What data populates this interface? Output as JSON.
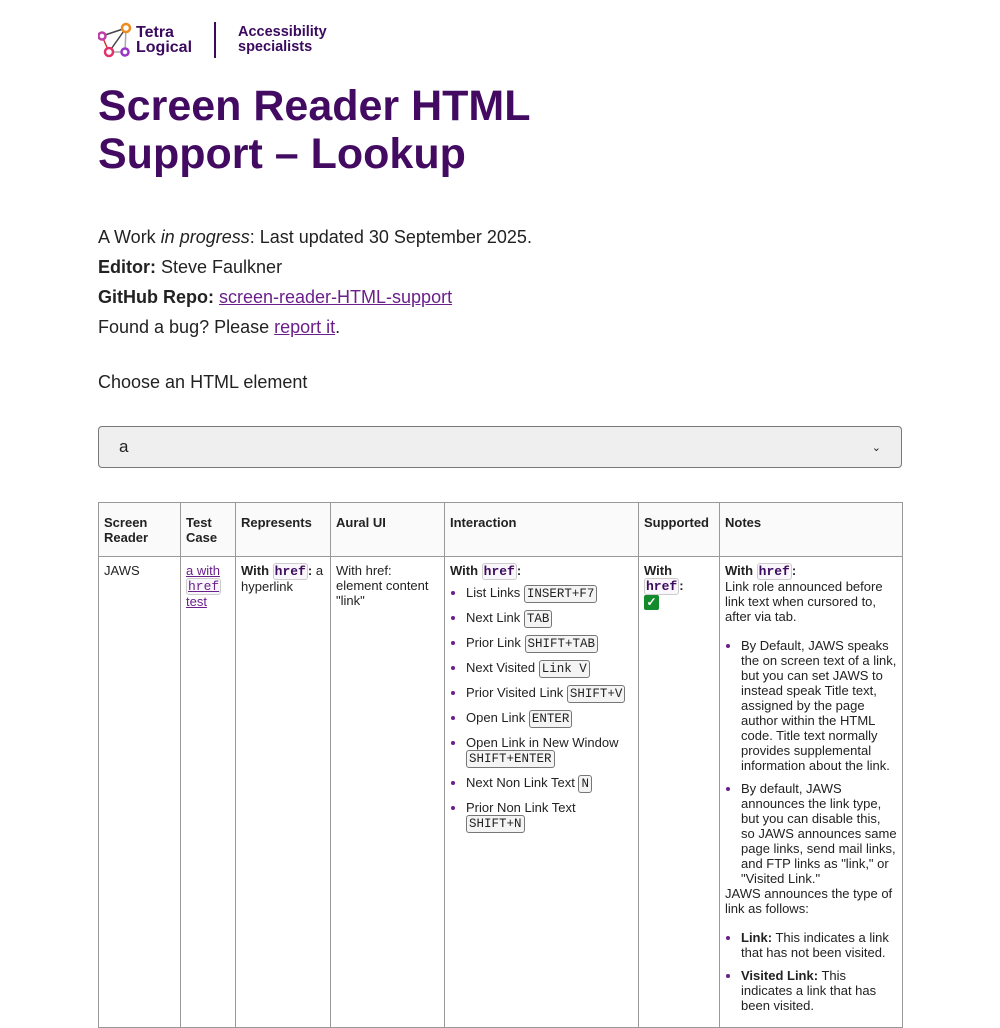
{
  "header": {
    "logo_text_1": "Tetra",
    "logo_text_2": "Logical",
    "tagline_1": "Accessibility",
    "tagline_2": "specialists",
    "brand_color": "#430a62"
  },
  "title_1": "Screen Reader HTML",
  "title_2": "Support – Lookup",
  "meta": {
    "wip_a": "A Work ",
    "wip_em": "in progress",
    "wip_b": ": Last updated 30 September 2025.",
    "editor_label": "Editor:",
    "editor": " Steve Faulkner",
    "repo_label": "GitHub Repo:",
    "repo_link": "screen-reader-HTML-support",
    "bug_a": "Found a bug? Please ",
    "bug_link": "report it",
    "bug_b": "."
  },
  "chooser": {
    "label": "Choose an HTML element",
    "value": "a"
  },
  "table": {
    "headers": [
      "Screen Reader",
      "Test Case",
      "Represents",
      "Aural UI",
      "Interaction",
      "Supported",
      "Notes"
    ],
    "row": {
      "reader": "JAWS",
      "test_a": "a with ",
      "test_code": "href",
      "test_b": " test",
      "with": "With ",
      "href": "href",
      "colon": ":",
      "represents": " a hyperlink",
      "aural": "With href: element content \"link\"",
      "interactions": [
        {
          "label": "List Links ",
          "key": "INSERT+F7"
        },
        {
          "label": "Next Link ",
          "key": "TAB"
        },
        {
          "label": "Prior Link ",
          "key": "SHIFT+TAB"
        },
        {
          "label": "Next Visited ",
          "key": "Link V"
        },
        {
          "label": "Prior Visited Link ",
          "key": "SHIFT+V"
        },
        {
          "label": "Open Link ",
          "key": "ENTER"
        },
        {
          "label": "Open Link in New Window ",
          "key": "SHIFT+ENTER"
        },
        {
          "label": "Next Non Link Text ",
          "key": "N"
        },
        {
          "label": "Prior Non Link Text ",
          "key": "SHIFT+N"
        }
      ],
      "supported": "yes",
      "notes_intro": "Link role announced before link text when cursored to, after via tab.",
      "notes_list_1": [
        "By Default, JAWS speaks the on screen text of a link, but you can set JAWS to instead speak Title text, assigned by the page author within the HTML code. Title text normally provides supplemental information about the link.",
        "By default, JAWS announces the link type, but you can disable this, so JAWS announces same page links, send mail links, and FTP links as \"link,\" or \"Visited Link.\""
      ],
      "notes_mid": "JAWS announces the type of link as follows:",
      "notes_list_2": [
        {
          "term": "Link:",
          "desc": " This indicates a link that has not been visited."
        },
        {
          "term": "Visited Link:",
          "desc": " This indicates a link that has been visited."
        }
      ]
    }
  }
}
